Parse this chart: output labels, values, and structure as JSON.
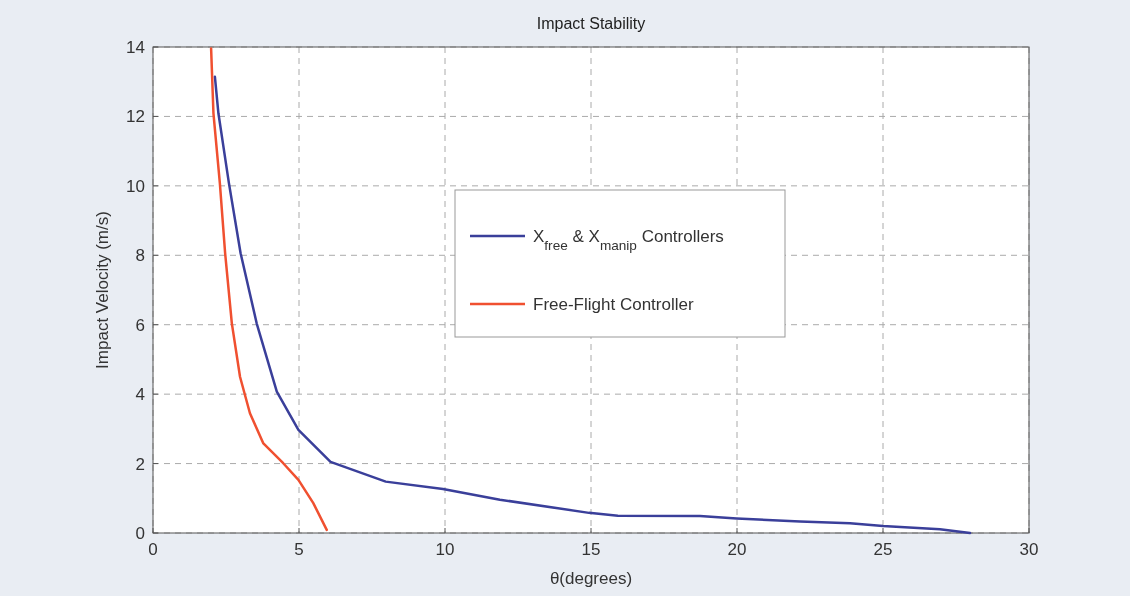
{
  "chart_data": {
    "type": "line",
    "title": "Impact Stability",
    "xlabel": "θ(degrees)",
    "ylabel": "Impact Velocity (m/s)",
    "xlim": [
      0,
      30
    ],
    "xticks": [
      0,
      5,
      10,
      15,
      20,
      25,
      30
    ],
    "ylim": [
      0,
      14
    ],
    "yticks": [
      0,
      2,
      4,
      6,
      8,
      10,
      12,
      14
    ],
    "grid": true,
    "legend": "right",
    "line_style": "solid",
    "series": [
      {
        "name": "X$_{free}$ & X$_{manip}$ Controllers",
        "color": "#3a3f9a",
        "x": [
          2.12,
          2.24,
          2.6,
          3.0,
          3.55,
          4.24,
          4.98,
          6.08,
          7.97,
          9.93,
          11.88,
          14.93,
          15.92,
          18.73,
          19.99,
          22.16,
          23.87,
          25.0,
          26.95,
          27.98
        ],
        "values": [
          13.14,
          12.09,
          10.08,
          8.06,
          6.04,
          4.07,
          2.97,
          2.05,
          1.48,
          1.27,
          0.96,
          0.58,
          0.5,
          0.49,
          0.42,
          0.33,
          0.28,
          0.2,
          0.11,
          0.0
        ]
      },
      {
        "name": "Free-Flight Controller",
        "color": "#f05030",
        "x": [
          1.99,
          2.07,
          2.29,
          2.47,
          2.7,
          2.98,
          3.32,
          3.78,
          4.46,
          4.98,
          5.49,
          5.95
        ],
        "values": [
          13.96,
          12.09,
          10.07,
          8.06,
          6.04,
          4.5,
          3.45,
          2.58,
          2.01,
          1.53,
          0.86,
          0.09
        ]
      }
    ]
  }
}
